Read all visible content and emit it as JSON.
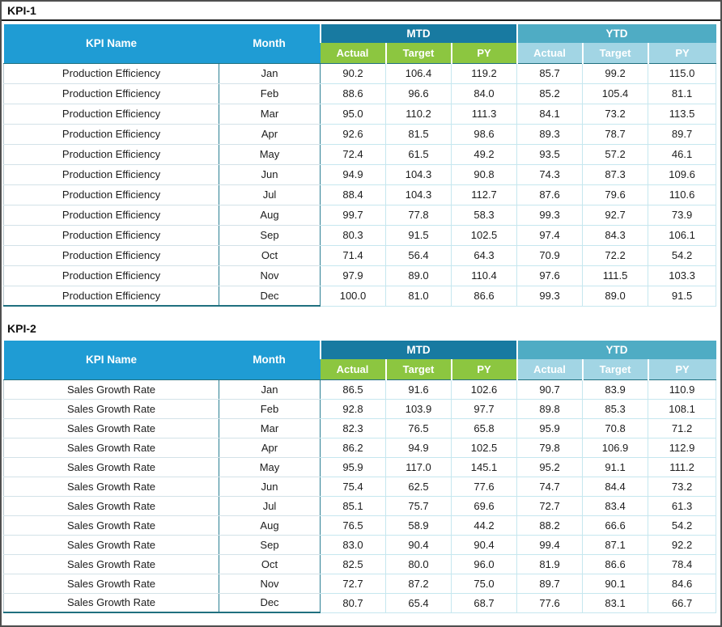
{
  "colors": {
    "header_blue": "#1f9cd4",
    "mtd_band": "#187aa1",
    "mtd_sub_green": "#8cc640",
    "ytd_band": "#4facc4",
    "ytd_sub_lightblue": "#a2d5e4",
    "light_border": "#c6e7ef",
    "dark_border": "#20707f"
  },
  "tables": [
    {
      "title": "KPI-1",
      "kpi_name": "Production Efficiency",
      "headers": {
        "kpi_name": "KPI Name",
        "month": "Month",
        "mtd": "MTD",
        "ytd": "YTD",
        "sub": [
          "Actual",
          "Target",
          "PY"
        ]
      },
      "rows": [
        {
          "month": "Jan",
          "mtd": [
            "90.2",
            "106.4",
            "119.2"
          ],
          "ytd": [
            "85.7",
            "99.2",
            "115.0"
          ]
        },
        {
          "month": "Feb",
          "mtd": [
            "88.6",
            "96.6",
            "84.0"
          ],
          "ytd": [
            "85.2",
            "105.4",
            "81.1"
          ]
        },
        {
          "month": "Mar",
          "mtd": [
            "95.0",
            "110.2",
            "111.3"
          ],
          "ytd": [
            "84.1",
            "73.2",
            "113.5"
          ]
        },
        {
          "month": "Apr",
          "mtd": [
            "92.6",
            "81.5",
            "98.6"
          ],
          "ytd": [
            "89.3",
            "78.7",
            "89.7"
          ]
        },
        {
          "month": "May",
          "mtd": [
            "72.4",
            "61.5",
            "49.2"
          ],
          "ytd": [
            "93.5",
            "57.2",
            "46.1"
          ]
        },
        {
          "month": "Jun",
          "mtd": [
            "94.9",
            "104.3",
            "90.8"
          ],
          "ytd": [
            "74.3",
            "87.3",
            "109.6"
          ]
        },
        {
          "month": "Jul",
          "mtd": [
            "88.4",
            "104.3",
            "112.7"
          ],
          "ytd": [
            "87.6",
            "79.6",
            "110.6"
          ]
        },
        {
          "month": "Aug",
          "mtd": [
            "99.7",
            "77.8",
            "58.3"
          ],
          "ytd": [
            "99.3",
            "92.7",
            "73.9"
          ]
        },
        {
          "month": "Sep",
          "mtd": [
            "80.3",
            "91.5",
            "102.5"
          ],
          "ytd": [
            "97.4",
            "84.3",
            "106.1"
          ]
        },
        {
          "month": "Oct",
          "mtd": [
            "71.4",
            "56.4",
            "64.3"
          ],
          "ytd": [
            "70.9",
            "72.2",
            "54.2"
          ]
        },
        {
          "month": "Nov",
          "mtd": [
            "97.9",
            "89.0",
            "110.4"
          ],
          "ytd": [
            "97.6",
            "111.5",
            "103.3"
          ]
        },
        {
          "month": "Dec",
          "mtd": [
            "100.0",
            "81.0",
            "86.6"
          ],
          "ytd": [
            "99.3",
            "89.0",
            "91.5"
          ]
        }
      ]
    },
    {
      "title": "KPI-2",
      "kpi_name": "Sales Growth Rate",
      "headers": {
        "kpi_name": "KPI Name",
        "month": "Month",
        "mtd": "MTD",
        "ytd": "YTD",
        "sub": [
          "Actual",
          "Target",
          "PY"
        ]
      },
      "rows": [
        {
          "month": "Jan",
          "mtd": [
            "86.5",
            "91.6",
            "102.6"
          ],
          "ytd": [
            "90.7",
            "83.9",
            "110.9"
          ]
        },
        {
          "month": "Feb",
          "mtd": [
            "92.8",
            "103.9",
            "97.7"
          ],
          "ytd": [
            "89.8",
            "85.3",
            "108.1"
          ]
        },
        {
          "month": "Mar",
          "mtd": [
            "82.3",
            "76.5",
            "65.8"
          ],
          "ytd": [
            "95.9",
            "70.8",
            "71.2"
          ]
        },
        {
          "month": "Apr",
          "mtd": [
            "86.2",
            "94.9",
            "102.5"
          ],
          "ytd": [
            "79.8",
            "106.9",
            "112.9"
          ]
        },
        {
          "month": "May",
          "mtd": [
            "95.9",
            "117.0",
            "145.1"
          ],
          "ytd": [
            "95.2",
            "91.1",
            "111.2"
          ]
        },
        {
          "month": "Jun",
          "mtd": [
            "75.4",
            "62.5",
            "77.6"
          ],
          "ytd": [
            "74.7",
            "84.4",
            "73.2"
          ]
        },
        {
          "month": "Jul",
          "mtd": [
            "85.1",
            "75.7",
            "69.6"
          ],
          "ytd": [
            "72.7",
            "83.4",
            "61.3"
          ]
        },
        {
          "month": "Aug",
          "mtd": [
            "76.5",
            "58.9",
            "44.2"
          ],
          "ytd": [
            "88.2",
            "66.6",
            "54.2"
          ]
        },
        {
          "month": "Sep",
          "mtd": [
            "83.0",
            "90.4",
            "90.4"
          ],
          "ytd": [
            "99.4",
            "87.1",
            "92.2"
          ]
        },
        {
          "month": "Oct",
          "mtd": [
            "82.5",
            "80.0",
            "96.0"
          ],
          "ytd": [
            "81.9",
            "86.6",
            "78.4"
          ]
        },
        {
          "month": "Nov",
          "mtd": [
            "72.7",
            "87.2",
            "75.0"
          ],
          "ytd": [
            "89.7",
            "90.1",
            "84.6"
          ]
        },
        {
          "month": "Dec",
          "mtd": [
            "80.7",
            "65.4",
            "68.7"
          ],
          "ytd": [
            "77.6",
            "83.1",
            "66.7"
          ]
        }
      ]
    }
  ]
}
